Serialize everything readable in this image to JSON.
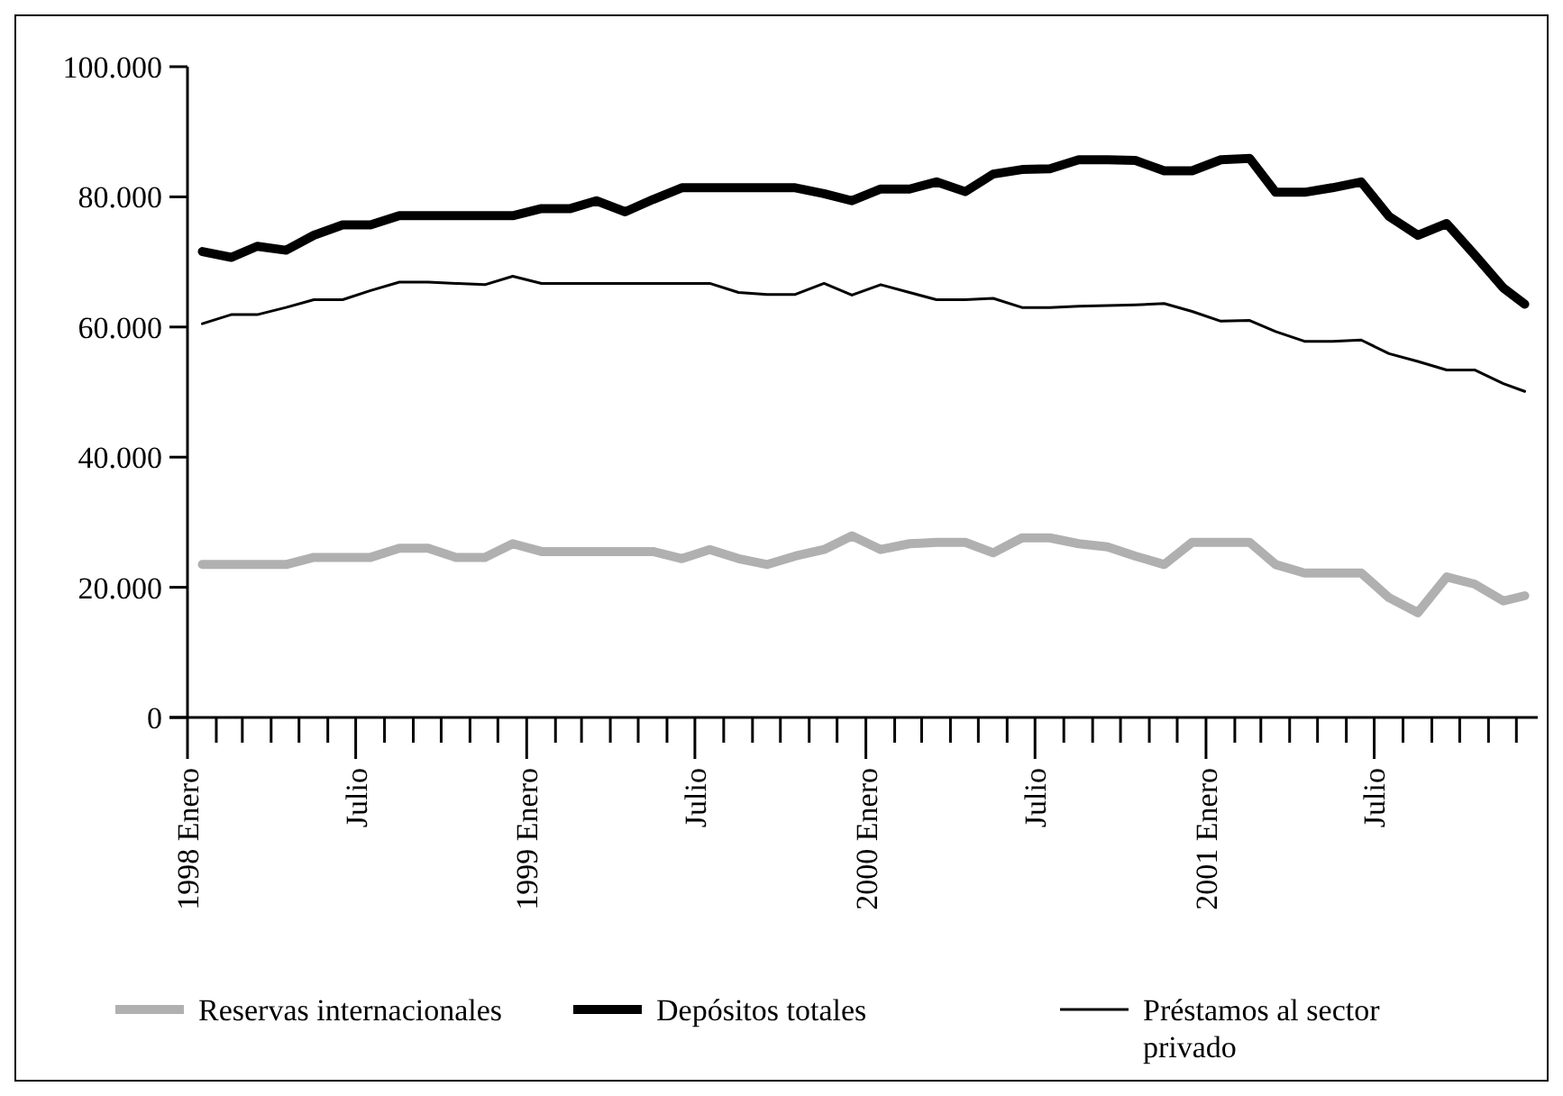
{
  "chart_data": {
    "type": "line",
    "x": [
      "1998-01-17",
      "1998-02-17",
      "1998-03-17",
      "1998-04-17",
      "1998-05-17",
      "1998-06-17",
      "1998-07-17",
      "1998-08-17",
      "1998-09-17",
      "1998-10-17",
      "1998-11-17",
      "1998-12-17",
      "1999-01-17",
      "1999-02-17",
      "1999-03-17",
      "1999-04-17",
      "1999-05-17",
      "1999-06-17",
      "1999-07-17",
      "1999-08-17",
      "1999-09-17",
      "1999-10-17",
      "1999-11-17",
      "1999-12-17",
      "2000-01-17",
      "2000-02-17",
      "2000-03-17",
      "2000-04-17",
      "2000-05-17",
      "2000-06-17",
      "2000-07-17",
      "2000-08-17",
      "2000-09-17",
      "2000-10-17",
      "2000-11-17",
      "2000-12-17",
      "2001-01-17",
      "2001-02-17",
      "2001-03-17",
      "2001-04-17",
      "2001-05-17",
      "2001-06-17",
      "2001-07-17",
      "2001-08-17",
      "2001-09-17",
      "2001-10-17",
      "2001-11-17",
      "2001-12-10"
    ],
    "series": [
      {
        "name": "Reservas internacionales",
        "color": "#b0b0b0",
        "values": [
          23500,
          23500,
          23500,
          23500,
          24600,
          24600,
          24600,
          26000,
          26000,
          24600,
          24600,
          26700,
          25500,
          25500,
          25500,
          25500,
          25500,
          24400,
          25800,
          24400,
          23500,
          24800,
          25800,
          27900,
          25800,
          26700,
          26900,
          26900,
          25300,
          27600,
          27600,
          26700,
          26200,
          24800,
          23500,
          26900,
          26900,
          26900,
          23500,
          22200,
          22200,
          22200,
          18400,
          16100,
          21600,
          20500,
          17900,
          18700
        ]
      },
      {
        "name": "Depósitos totales",
        "color": "#000000",
        "values": [
          71600,
          70700,
          72400,
          71800,
          74100,
          75700,
          75700,
          77100,
          77100,
          77100,
          77100,
          77100,
          78200,
          78200,
          79400,
          77700,
          79600,
          81400,
          81400,
          81400,
          81400,
          81400,
          80500,
          79400,
          81200,
          81200,
          82300,
          80800,
          83500,
          84200,
          84300,
          85700,
          85700,
          85600,
          84000,
          84000,
          85700,
          85900,
          80700,
          80700,
          81400,
          82300,
          77000,
          74100,
          75900,
          71100,
          66000,
          63500
        ]
      },
      {
        "name": "Préstamos al sector privado",
        "color": "#000000",
        "values": [
          60500,
          61900,
          61900,
          63000,
          64200,
          64200,
          65600,
          66900,
          66900,
          66700,
          66500,
          67800,
          66700,
          66700,
          66700,
          66700,
          66700,
          66700,
          66700,
          65300,
          65000,
          65000,
          66700,
          64900,
          66500,
          65300,
          64200,
          64200,
          64400,
          63000,
          63000,
          63200,
          63300,
          63400,
          63600,
          62400,
          60900,
          61000,
          59300,
          57800,
          57800,
          58000,
          55900,
          54700,
          53400,
          53400,
          51300,
          50100
        ]
      }
    ],
    "xlim": [
      "1998-01-01",
      "2001-12-24"
    ],
    "xticks": [
      {
        "value": "1998-01",
        "label": "1998 Enero"
      },
      {
        "value": "1998-02",
        "label": null
      },
      {
        "value": "1998-03",
        "label": null
      },
      {
        "value": "1998-04",
        "label": null
      },
      {
        "value": "1998-05",
        "label": null
      },
      {
        "value": "1998-06",
        "label": null
      },
      {
        "value": "1998-07",
        "label": "Julio"
      },
      {
        "value": "1998-08",
        "label": null
      },
      {
        "value": "1998-09",
        "label": null
      },
      {
        "value": "1998-10",
        "label": null
      },
      {
        "value": "1998-11",
        "label": null
      },
      {
        "value": "1998-12",
        "label": null
      },
      {
        "value": "1999-01",
        "label": "1999 Enero"
      },
      {
        "value": "1999-02",
        "label": null
      },
      {
        "value": "1999-03",
        "label": null
      },
      {
        "value": "1999-04",
        "label": null
      },
      {
        "value": "1999-05",
        "label": null
      },
      {
        "value": "1999-06",
        "label": null
      },
      {
        "value": "1999-07",
        "label": "Julio"
      },
      {
        "value": "1999-08",
        "label": null
      },
      {
        "value": "1999-09",
        "label": null
      },
      {
        "value": "1999-10",
        "label": null
      },
      {
        "value": "1999-11",
        "label": null
      },
      {
        "value": "1999-12",
        "label": null
      },
      {
        "value": "2000-01",
        "label": "2000 Enero"
      },
      {
        "value": "2000-02",
        "label": null
      },
      {
        "value": "2000-03",
        "label": null
      },
      {
        "value": "2000-04",
        "label": null
      },
      {
        "value": "2000-05",
        "label": null
      },
      {
        "value": "2000-06",
        "label": null
      },
      {
        "value": "2000-07",
        "label": "Julio"
      },
      {
        "value": "2000-08",
        "label": null
      },
      {
        "value": "2000-09",
        "label": null
      },
      {
        "value": "2000-10",
        "label": null
      },
      {
        "value": "2000-11",
        "label": null
      },
      {
        "value": "2000-12",
        "label": null
      },
      {
        "value": "2001-01",
        "label": "2001 Enero"
      },
      {
        "value": "2001-02",
        "label": null
      },
      {
        "value": "2001-03",
        "label": null
      },
      {
        "value": "2001-04",
        "label": null
      },
      {
        "value": "2001-05",
        "label": null
      },
      {
        "value": "2001-06",
        "label": null
      },
      {
        "value": "2001-07",
        "label": "Julio"
      },
      {
        "value": "2001-08",
        "label": null
      },
      {
        "value": "2001-09",
        "label": null
      },
      {
        "value": "2001-10",
        "label": null
      },
      {
        "value": "2001-11",
        "label": null
      },
      {
        "value": "2001-12",
        "label": null
      }
    ],
    "ylim": [
      0,
      100000
    ],
    "yticks": [
      {
        "value": 0,
        "label": "0"
      },
      {
        "value": 20000,
        "label": "20.000"
      },
      {
        "value": 40000,
        "label": "40.000"
      },
      {
        "value": 60000,
        "label": "60.000"
      },
      {
        "value": 80000,
        "label": "80.000"
      },
      {
        "value": 100000,
        "label": "100.000"
      }
    ],
    "grid": false,
    "legend": "bottom",
    "marker": "none",
    "line_style": "solid"
  }
}
